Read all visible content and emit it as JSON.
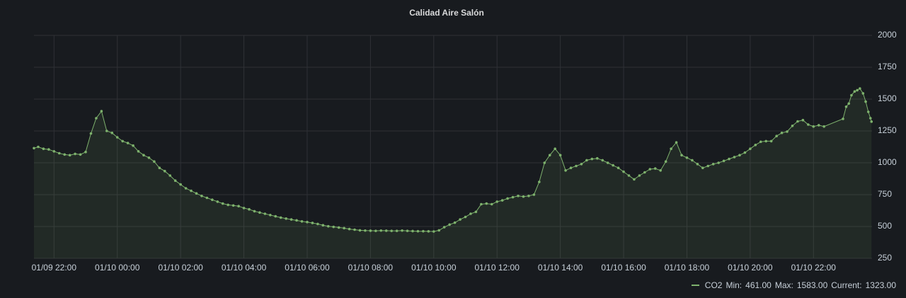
{
  "chart_data": {
    "type": "line",
    "title": "Calidad Aire Salón",
    "x": [
      "01/09 21:22",
      "01/09 21:30",
      "01/09 21:40",
      "01/09 21:50",
      "01/09 22:00",
      "01/09 22:10",
      "01/09 22:20",
      "01/09 22:30",
      "01/09 22:40",
      "01/09 22:50",
      "01/09 23:00",
      "01/09 23:10",
      "01/09 23:20",
      "01/09 23:30",
      "01/09 23:40",
      "01/09 23:50",
      "01/10 00:00",
      "01/10 00:10",
      "01/10 00:20",
      "01/10 00:30",
      "01/10 00:40",
      "01/10 00:50",
      "01/10 01:00",
      "01/10 01:10",
      "01/10 01:20",
      "01/10 01:30",
      "01/10 01:40",
      "01/10 01:50",
      "01/10 02:00",
      "01/10 02:10",
      "01/10 02:20",
      "01/10 02:30",
      "01/10 02:40",
      "01/10 02:50",
      "01/10 03:00",
      "01/10 03:10",
      "01/10 03:20",
      "01/10 03:30",
      "01/10 03:40",
      "01/10 03:50",
      "01/10 04:00",
      "01/10 04:10",
      "01/10 04:20",
      "01/10 04:30",
      "01/10 04:40",
      "01/10 04:50",
      "01/10 05:00",
      "01/10 05:10",
      "01/10 05:20",
      "01/10 05:30",
      "01/10 05:40",
      "01/10 05:50",
      "01/10 06:00",
      "01/10 06:10",
      "01/10 06:20",
      "01/10 06:30",
      "01/10 06:40",
      "01/10 06:50",
      "01/10 07:00",
      "01/10 07:10",
      "01/10 07:20",
      "01/10 07:30",
      "01/10 07:40",
      "01/10 07:50",
      "01/10 08:00",
      "01/10 08:10",
      "01/10 08:20",
      "01/10 08:30",
      "01/10 08:40",
      "01/10 08:50",
      "01/10 09:00",
      "01/10 09:10",
      "01/10 09:20",
      "01/10 09:30",
      "01/10 09:40",
      "01/10 09:50",
      "01/10 10:00",
      "01/10 10:10",
      "01/10 10:20",
      "01/10 10:30",
      "01/10 10:40",
      "01/10 10:50",
      "01/10 11:00",
      "01/10 11:10",
      "01/10 11:20",
      "01/10 11:30",
      "01/10 11:40",
      "01/10 11:50",
      "01/10 12:00",
      "01/10 12:10",
      "01/10 12:20",
      "01/10 12:30",
      "01/10 12:40",
      "01/10 12:50",
      "01/10 13:00",
      "01/10 13:10",
      "01/10 13:20",
      "01/10 13:30",
      "01/10 13:40",
      "01/10 13:50",
      "01/10 14:00",
      "01/10 14:10",
      "01/10 14:20",
      "01/10 14:30",
      "01/10 14:40",
      "01/10 14:50",
      "01/10 15:00",
      "01/10 15:10",
      "01/10 15:20",
      "01/10 15:30",
      "01/10 15:40",
      "01/10 15:50",
      "01/10 16:00",
      "01/10 16:10",
      "01/10 16:20",
      "01/10 16:30",
      "01/10 16:40",
      "01/10 16:50",
      "01/10 17:00",
      "01/10 17:10",
      "01/10 17:20",
      "01/10 17:30",
      "01/10 17:40",
      "01/10 17:50",
      "01/10 18:00",
      "01/10 18:10",
      "01/10 18:20",
      "01/10 18:30",
      "01/10 18:40",
      "01/10 18:50",
      "01/10 19:00",
      "01/10 19:10",
      "01/10 19:20",
      "01/10 19:30",
      "01/10 19:40",
      "01/10 19:50",
      "01/10 20:00",
      "01/10 20:10",
      "01/10 20:20",
      "01/10 20:30",
      "01/10 20:40",
      "01/10 20:50",
      "01/10 21:00",
      "01/10 21:10",
      "01/10 21:20",
      "01/10 21:30",
      "01/10 21:40",
      "01/10 21:50",
      "01/10 22:00",
      "01/10 22:10",
      "01/10 22:20",
      "01/10 22:56",
      "01/10 23:02",
      "01/10 23:07",
      "01/10 23:12",
      "01/10 23:18",
      "01/10 23:23",
      "01/10 23:28",
      "01/10 23:34",
      "01/10 23:39",
      "01/10 23:44",
      "01/10 23:48",
      "01/10 23:50"
    ],
    "series": [
      {
        "name": "CO2",
        "color": "#7eb26d",
        "values": [
          1115,
          1125,
          1110,
          1105,
          1090,
          1075,
          1065,
          1060,
          1070,
          1065,
          1085,
          1230,
          1350,
          1405,
          1250,
          1235,
          1200,
          1170,
          1155,
          1135,
          1090,
          1060,
          1040,
          1010,
          960,
          935,
          900,
          860,
          830,
          800,
          780,
          760,
          740,
          725,
          710,
          695,
          680,
          670,
          665,
          660,
          645,
          635,
          620,
          610,
          600,
          590,
          580,
          570,
          562,
          555,
          548,
          540,
          535,
          528,
          520,
          510,
          502,
          497,
          492,
          487,
          480,
          475,
          470,
          468,
          467,
          466,
          468,
          467,
          466,
          466,
          468,
          466,
          464,
          463,
          463,
          462,
          461,
          470,
          495,
          515,
          530,
          555,
          575,
          600,
          615,
          675,
          680,
          675,
          695,
          705,
          720,
          730,
          740,
          735,
          740,
          750,
          850,
          1000,
          1060,
          1110,
          1060,
          940,
          960,
          975,
          990,
          1020,
          1030,
          1035,
          1020,
          1000,
          980,
          960,
          930,
          900,
          870,
          900,
          925,
          950,
          955,
          940,
          1010,
          1110,
          1160,
          1060,
          1040,
          1020,
          990,
          960,
          975,
          990,
          1000,
          1015,
          1030,
          1045,
          1060,
          1080,
          1110,
          1140,
          1165,
          1170,
          1170,
          1210,
          1235,
          1245,
          1290,
          1325,
          1335,
          1300,
          1285,
          1295,
          1285,
          1345,
          1440,
          1465,
          1530,
          1560,
          1570,
          1583,
          1545,
          1480,
          1400,
          1350,
          1323
        ]
      }
    ],
    "xlim": [
      "01/09 21:22",
      "01/10 23:51"
    ],
    "xticks": [
      "01/09 22:00",
      "01/10 00:00",
      "01/10 02:00",
      "01/10 04:00",
      "01/10 06:00",
      "01/10 08:00",
      "01/10 10:00",
      "01/10 12:00",
      "01/10 14:00",
      "01/10 16:00",
      "01/10 18:00",
      "01/10 20:00",
      "01/10 22:00"
    ],
    "ylim": [
      250,
      2000
    ],
    "yticks": [
      250,
      500,
      750,
      1000,
      1250,
      1500,
      1750,
      2000
    ],
    "grid": true,
    "legend_stats": [
      {
        "name": "Min:",
        "value": 461,
        "label": "461.00"
      },
      {
        "name": "Max:",
        "value": 1583,
        "label": "1583.00"
      },
      {
        "name": "Current:",
        "value": 1323,
        "label": "1323.00"
      }
    ]
  }
}
